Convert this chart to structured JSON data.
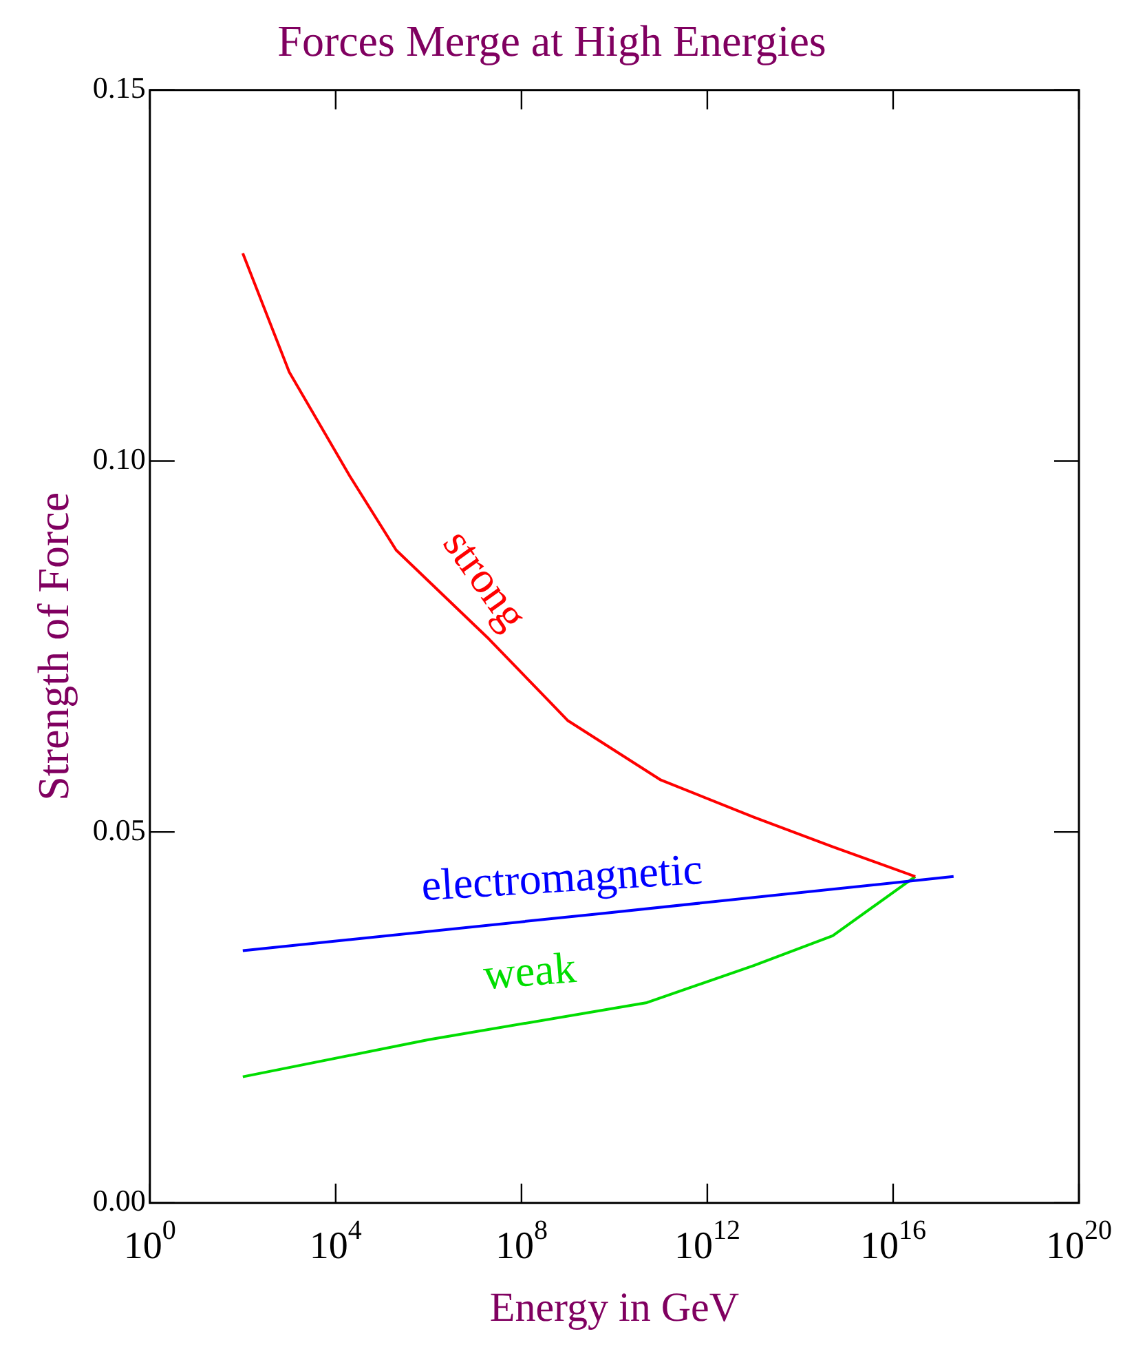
{
  "chart_data": {
    "type": "line",
    "title": "Forces Merge at High Energies",
    "xlabel": "Energy in GeV",
    "ylabel": "Strength of Force",
    "log": "x",
    "grid": false,
    "legend": false,
    "marker": "none",
    "line_style": "solid",
    "xlim": [
      1,
      1e+20
    ],
    "xticks": [
      {
        "value": 1,
        "label": "10$^{0}$"
      },
      {
        "value": 10000.0,
        "label": "10$^{4}$"
      },
      {
        "value": 100000000.0,
        "label": "10$^{8}$"
      },
      {
        "value": 1000000000000.0,
        "label": "10$^{12}$"
      },
      {
        "value": 1e+16,
        "label": "10$^{16}$"
      },
      {
        "value": 1e+20,
        "label": "10$^{20}$"
      }
    ],
    "ylim": [
      0,
      0.15
    ],
    "yticks": [
      {
        "value": 0,
        "label": "0.00"
      },
      {
        "value": 0.05,
        "label": "0.05"
      },
      {
        "value": 0.1,
        "label": "0.10"
      },
      {
        "value": 0.15,
        "label": "0.15"
      }
    ],
    "series": [
      {
        "name": "strong",
        "color": "#ff0000",
        "x": [
          100.0,
          1000.0,
          20000.0,
          200000.0,
          20000000.0,
          1000000000.0,
          100000000000.0,
          10000000000000.0,
          500000000000000.0,
          3e+16
        ],
        "values": [
          0.128,
          0.112,
          0.098,
          0.088,
          0.076,
          0.065,
          0.057,
          0.052,
          0.048,
          0.044
        ]
      },
      {
        "name": "electromagnetic",
        "color": "#0000ff",
        "x": [
          100.0,
          5000000000.0,
          2e+17
        ],
        "values": [
          0.034,
          0.039,
          0.044
        ]
      },
      {
        "name": "weak",
        "color": "#00dd00",
        "x": [
          100.0,
          1000000.0,
          50000000000.0,
          10000000000000.0,
          500000000000000.0,
          3e+16
        ],
        "values": [
          0.017,
          0.022,
          0.027,
          0.032,
          0.036,
          0.044
        ]
      }
    ]
  }
}
